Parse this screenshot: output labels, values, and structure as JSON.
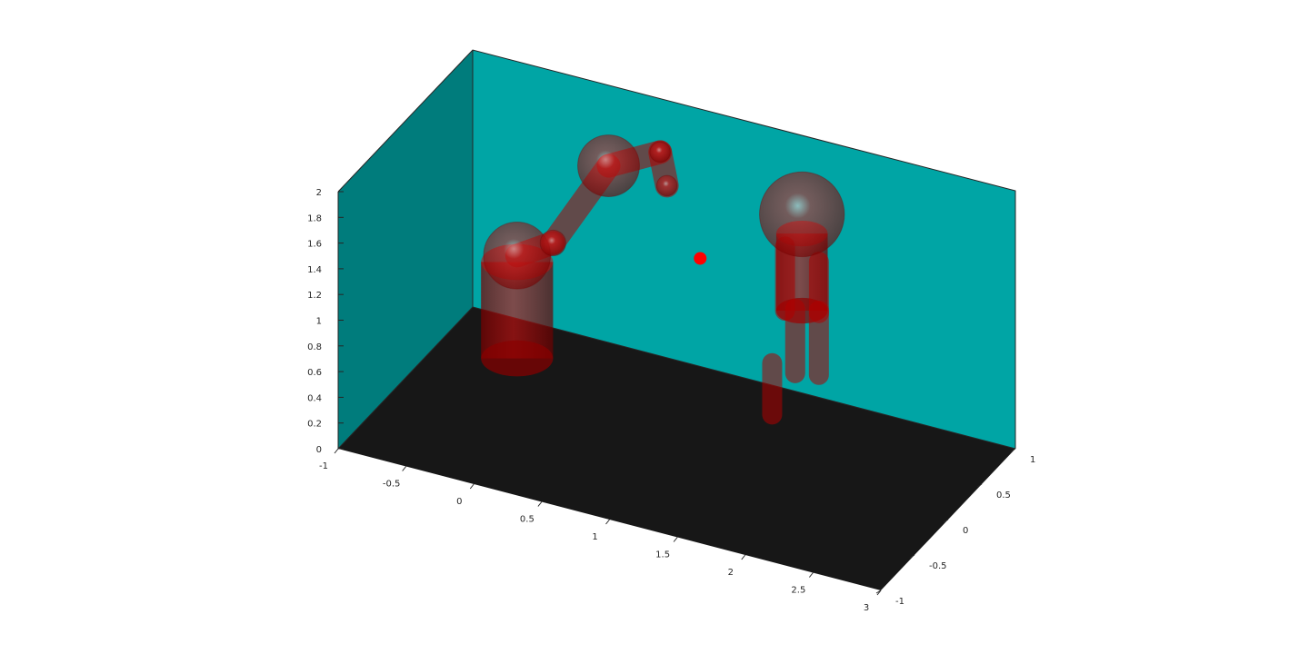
{
  "chart_data": {
    "type": "scatter",
    "title": "",
    "xlabel": "",
    "ylabel": "",
    "zlabel": "",
    "xlim": [
      -1,
      3
    ],
    "ylim": [
      -1,
      1
    ],
    "zlim": [
      0,
      2
    ],
    "x_ticks": [
      "-1",
      "-0.5",
      "0",
      "0.5",
      "1",
      "1.5",
      "2",
      "2.5",
      "3"
    ],
    "y_ticks": [
      "-1",
      "-0.5",
      "0",
      "0.5",
      "1"
    ],
    "z_ticks": [
      "0",
      "0.2",
      "0.4",
      "0.6",
      "0.8",
      "1",
      "1.2",
      "1.4",
      "1.6",
      "1.8",
      "2"
    ],
    "grid": false,
    "colors": {
      "back_wall": "#00a5a5",
      "side_wall": "#007878",
      "floor": "#171717",
      "body": "#c80000",
      "target": "#ff0000"
    },
    "target_point": {
      "x": 0.9,
      "y": 0.55,
      "z": 1.15
    },
    "robot_arm": {
      "base": {
        "x": -0.45,
        "y": 0.55,
        "z_bottom": 0,
        "z_top": 0.75,
        "radius": 0.28
      },
      "joints": [
        {
          "x": -0.45,
          "y": 0.55,
          "z": 0.8,
          "radius": 0.26
        },
        {
          "x": -0.2,
          "y": 0.58,
          "z": 0.95,
          "radius": 0.1
        },
        {
          "x": 0.2,
          "y": 0.6,
          "z": 1.65,
          "radius": 0.24
        },
        {
          "x": 0.55,
          "y": 0.66,
          "z": 1.82,
          "radius": 0.08
        },
        {
          "x": 0.62,
          "y": 0.62,
          "z": 1.6,
          "radius": 0.08
        }
      ]
    },
    "human": {
      "head": {
        "x": 1.65,
        "y": 0.55,
        "z": 1.7,
        "radius": 0.33
      },
      "torso": {
        "x": 1.65,
        "y": 0.55,
        "z_bottom": 0.95,
        "z_top": 1.55,
        "radius": 0.2
      },
      "limbs": [
        {
          "from": {
            "x": 1.55,
            "y": 0.5,
            "z": 1.45
          },
          "to": {
            "x": 1.55,
            "y": 0.5,
            "z": 0.95
          }
        },
        {
          "from": {
            "x": 1.8,
            "y": 0.5,
            "z": 1.4
          },
          "to": {
            "x": 1.8,
            "y": 0.5,
            "z": 1.0
          }
        },
        {
          "from": {
            "x": 1.6,
            "y": 0.55,
            "z": 0.95
          },
          "to": {
            "x": 1.6,
            "y": 0.55,
            "z": 0.45
          }
        },
        {
          "from": {
            "x": 1.75,
            "y": 0.6,
            "z": 0.95
          },
          "to": {
            "x": 1.75,
            "y": 0.6,
            "z": 0.45
          }
        },
        {
          "from": {
            "x": 1.48,
            "y": 0.45,
            "z": 0.55
          },
          "to": {
            "x": 1.48,
            "y": 0.45,
            "z": 0.15
          }
        }
      ]
    }
  }
}
